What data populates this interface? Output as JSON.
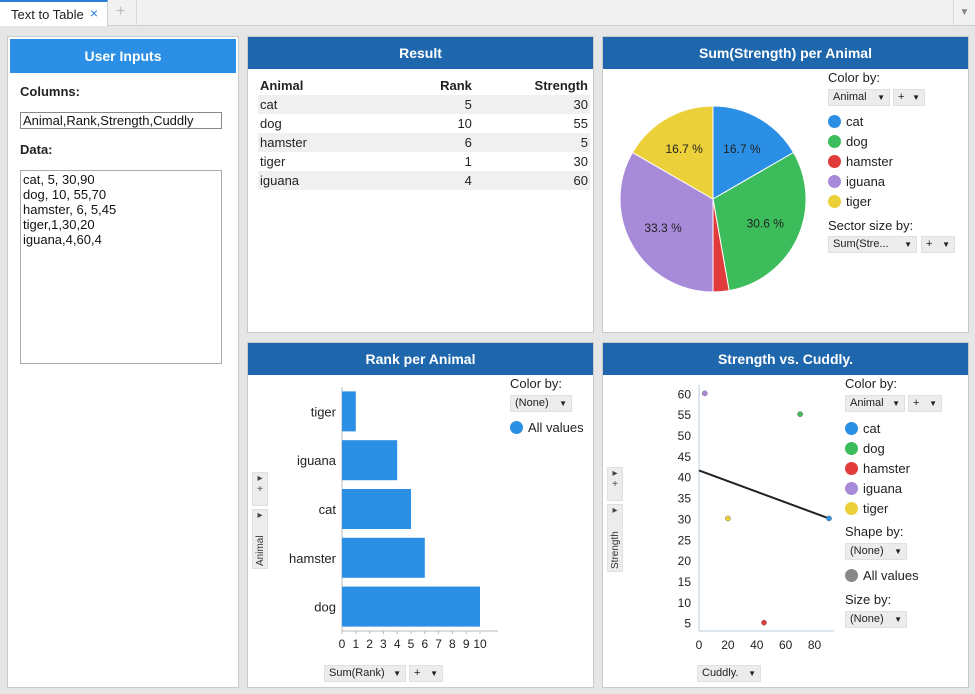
{
  "tabs": {
    "active_label": "Text to Table",
    "close_glyph": "×",
    "add_glyph": "+",
    "menu_glyph": "▼"
  },
  "user_inputs": {
    "title": "User Inputs",
    "columns_label": "Columns:",
    "columns_value": "Animal,Rank,Strength,Cuddly",
    "data_label": "Data:",
    "data_value": "cat, 5, 30,90\ndog, 10, 55,70\nhamster, 6, 5,45\ntiger,1,30,20\niguana,4,60,4"
  },
  "result": {
    "title": "Result",
    "headers": [
      "Animal",
      "Rank",
      "Strength"
    ],
    "rows": [
      [
        "cat",
        "5",
        "30"
      ],
      [
        "dog",
        "10",
        "55"
      ],
      [
        "hamster",
        "6",
        "5"
      ],
      [
        "tiger",
        "1",
        "30"
      ],
      [
        "iguana",
        "4",
        "60"
      ]
    ]
  },
  "colors": {
    "cat": "#2b8fe6",
    "dog": "#3cbc5a",
    "hamster": "#e23b3b",
    "iguana": "#a78bd8",
    "tiger": "#ecd03a",
    "all_values_bar": "#2b8fe6",
    "all_values_shape": "#888888",
    "header_bg": "#1f67ad"
  },
  "pie_panel": {
    "title": "Sum(Strength) per Animal",
    "color_by_label": "Color by:",
    "color_by_value": "Animal",
    "sector_size_label": "Sector size by:",
    "sector_size_value": "Sum(Stre...",
    "plus": "+",
    "legend": [
      "cat",
      "dog",
      "hamster",
      "iguana",
      "tiger"
    ]
  },
  "bar_panel": {
    "title": "Rank per Animal",
    "color_by_label": "Color by:",
    "color_by_value": "(None)",
    "legend_all": "All values",
    "y_axis_label": "Animal",
    "x_axis_dropdown": "Sum(Rank)",
    "plus": "+"
  },
  "scatter_panel": {
    "title": "Strength vs. Cuddly.",
    "color_by_label": "Color by:",
    "color_by_value": "Animal",
    "legend": [
      "cat",
      "dog",
      "hamster",
      "iguana",
      "tiger"
    ],
    "shape_by_label": "Shape by:",
    "shape_by_value": "(None)",
    "shape_all": "All values",
    "size_by_label": "Size by:",
    "size_by_value": "(None)",
    "y_axis_label": "Strength",
    "x_axis_dropdown": "Cuddly.",
    "plus": "+"
  },
  "chart_data": [
    {
      "type": "pie",
      "title": "Sum(Strength) per Animal",
      "slices": [
        {
          "label": "cat",
          "value": 30,
          "pct_label": "16.7 %"
        },
        {
          "label": "dog",
          "value": 55,
          "pct_label": "30.6 %"
        },
        {
          "label": "hamster",
          "value": 5,
          "pct_label": ""
        },
        {
          "label": "iguana",
          "value": 60,
          "pct_label": "33.3 %"
        },
        {
          "label": "tiger",
          "value": 30,
          "pct_label": "16.7 %"
        }
      ]
    },
    {
      "type": "bar",
      "orientation": "horizontal",
      "title": "Rank per Animal",
      "categories": [
        "tiger",
        "iguana",
        "cat",
        "hamster",
        "dog"
      ],
      "values": [
        1,
        4,
        5,
        6,
        10
      ],
      "xlim": [
        0,
        10
      ],
      "xticks": [
        "0",
        "1",
        "2",
        "3",
        "4",
        "5",
        "6",
        "7",
        "8",
        "9",
        "10"
      ]
    },
    {
      "type": "scatter",
      "title": "Strength vs. Cuddly.",
      "points": [
        {
          "label": "cat",
          "x": 90,
          "y": 30
        },
        {
          "label": "dog",
          "x": 70,
          "y": 55
        },
        {
          "label": "hamster",
          "x": 45,
          "y": 5
        },
        {
          "label": "tiger",
          "x": 20,
          "y": 30
        },
        {
          "label": "iguana",
          "x": 4,
          "y": 60
        }
      ],
      "trendline": {
        "x": [
          0,
          90
        ],
        "y": [
          41.5,
          30
        ]
      },
      "xlim": [
        0,
        90
      ],
      "ylim": [
        3,
        62
      ],
      "xticks": [
        "0",
        "20",
        "40",
        "60",
        "80"
      ],
      "yticks": [
        "5",
        "10",
        "15",
        "20",
        "25",
        "30",
        "35",
        "40",
        "45",
        "50",
        "55",
        "60"
      ]
    }
  ]
}
